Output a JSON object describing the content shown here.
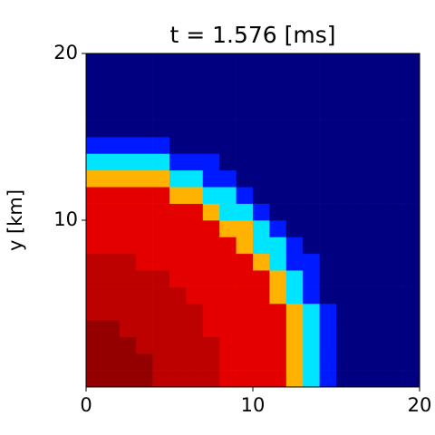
{
  "chart_data": {
    "type": "heatmap",
    "title": "t = 1.576 [ms]",
    "ylabel": "y [km]",
    "colormap": "jet",
    "xlim": [
      0,
      20
    ],
    "ylim": [
      0,
      20
    ],
    "xticks": [
      0,
      10,
      20
    ],
    "yticks": [
      10,
      20
    ],
    "z": [
      [
        0.98,
        0.98,
        0.98,
        0.98,
        0.94,
        0.94,
        0.94,
        0.94,
        0.9,
        0.9,
        0.9,
        0.9,
        0.7,
        0.35,
        0.15,
        0,
        0,
        0,
        0,
        0
      ],
      [
        0.98,
        0.98,
        0.98,
        0.98,
        0.94,
        0.94,
        0.94,
        0.94,
        0.9,
        0.9,
        0.9,
        0.9,
        0.7,
        0.35,
        0.15,
        0,
        0,
        0,
        0,
        0
      ],
      [
        0.98,
        0.98,
        0.98,
        0.94,
        0.94,
        0.94,
        0.94,
        0.94,
        0.9,
        0.9,
        0.9,
        0.9,
        0.7,
        0.35,
        0.15,
        0,
        0,
        0,
        0,
        0
      ],
      [
        0.98,
        0.98,
        0.94,
        0.94,
        0.94,
        0.94,
        0.94,
        0.9,
        0.9,
        0.9,
        0.9,
        0.9,
        0.7,
        0.35,
        0.15,
        0,
        0,
        0,
        0,
        0
      ],
      [
        0.94,
        0.94,
        0.94,
        0.94,
        0.94,
        0.94,
        0.94,
        0.9,
        0.9,
        0.9,
        0.9,
        0.9,
        0.7,
        0.35,
        0.15,
        0,
        0,
        0,
        0,
        0
      ],
      [
        0.94,
        0.94,
        0.94,
        0.94,
        0.94,
        0.94,
        0.9,
        0.9,
        0.9,
        0.9,
        0.9,
        0.7,
        0.35,
        0.15,
        0,
        0,
        0,
        0,
        0,
        0
      ],
      [
        0.94,
        0.94,
        0.94,
        0.94,
        0.94,
        0.9,
        0.9,
        0.9,
        0.9,
        0.9,
        0.9,
        0.7,
        0.35,
        0.15,
        0,
        0,
        0,
        0,
        0,
        0
      ],
      [
        0.94,
        0.94,
        0.94,
        0.9,
        0.9,
        0.9,
        0.9,
        0.9,
        0.9,
        0.9,
        0.7,
        0.35,
        0.15,
        0.15,
        0,
        0,
        0,
        0,
        0,
        0
      ],
      [
        0.9,
        0.9,
        0.9,
        0.9,
        0.9,
        0.9,
        0.9,
        0.9,
        0.9,
        0.7,
        0.35,
        0.35,
        0.15,
        0,
        0,
        0,
        0,
        0,
        0,
        0
      ],
      [
        0.9,
        0.9,
        0.9,
        0.9,
        0.9,
        0.9,
        0.9,
        0.9,
        0.7,
        0.7,
        0.35,
        0.15,
        0,
        0,
        0,
        0,
        0,
        0,
        0,
        0
      ],
      [
        0.9,
        0.9,
        0.9,
        0.9,
        0.9,
        0.9,
        0.9,
        0.7,
        0.35,
        0.35,
        0.15,
        0,
        0,
        0,
        0,
        0,
        0,
        0,
        0,
        0
      ],
      [
        0.9,
        0.9,
        0.9,
        0.9,
        0.9,
        0.7,
        0.7,
        0.35,
        0.35,
        0.15,
        0,
        0,
        0,
        0,
        0,
        0,
        0,
        0,
        0,
        0
      ],
      [
        0.7,
        0.7,
        0.7,
        0.7,
        0.7,
        0.35,
        0.35,
        0.15,
        0.15,
        0,
        0,
        0,
        0,
        0,
        0,
        0,
        0,
        0,
        0,
        0
      ],
      [
        0.35,
        0.35,
        0.35,
        0.35,
        0.35,
        0.15,
        0.15,
        0.15,
        0,
        0,
        0,
        0,
        0,
        0,
        0,
        0,
        0,
        0,
        0,
        0
      ],
      [
        0.15,
        0.15,
        0.15,
        0.15,
        0.15,
        0,
        0,
        0,
        0,
        0,
        0,
        0,
        0,
        0,
        0,
        0,
        0,
        0,
        0,
        0
      ],
      [
        0,
        0,
        0,
        0,
        0,
        0,
        0,
        0,
        0,
        0,
        0,
        0,
        0,
        0,
        0,
        0,
        0,
        0,
        0,
        0
      ],
      [
        0,
        0,
        0,
        0,
        0,
        0,
        0,
        0,
        0,
        0,
        0,
        0,
        0,
        0,
        0,
        0,
        0,
        0,
        0,
        0
      ],
      [
        0,
        0,
        0,
        0,
        0,
        0,
        0,
        0,
        0,
        0,
        0,
        0,
        0,
        0,
        0,
        0,
        0,
        0,
        0,
        0
      ],
      [
        0,
        0,
        0,
        0,
        0,
        0,
        0,
        0,
        0,
        0,
        0,
        0,
        0,
        0,
        0,
        0,
        0,
        0,
        0,
        0
      ],
      [
        0,
        0,
        0,
        0,
        0,
        0,
        0,
        0,
        0,
        0,
        0,
        0,
        0,
        0,
        0,
        0,
        0,
        0,
        0,
        0
      ]
    ]
  }
}
